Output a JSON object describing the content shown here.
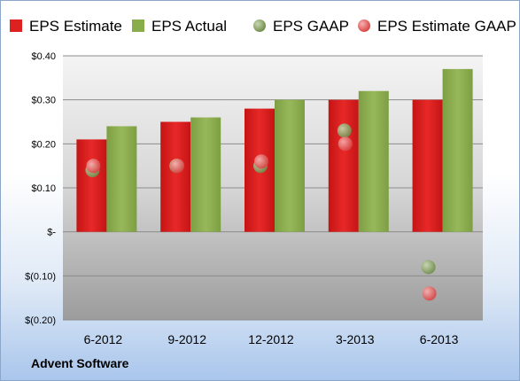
{
  "company": "Advent Software",
  "chart_data": {
    "type": "bar",
    "categories": [
      "6-2012",
      "9-2012",
      "12-2012",
      "3-2013",
      "6-2013"
    ],
    "series": [
      {
        "name": "EPS Estimate",
        "kind": "bar",
        "color": "#dd2020",
        "values": [
          0.21,
          0.25,
          0.28,
          0.3,
          0.3
        ]
      },
      {
        "name": "EPS Actual",
        "kind": "bar",
        "color": "#8aad4c",
        "values": [
          0.24,
          0.26,
          0.3,
          0.32,
          0.37
        ]
      },
      {
        "name": "EPS GAAP",
        "kind": "point",
        "color": "#7f9a58",
        "values": [
          0.14,
          0.15,
          0.15,
          0.23,
          -0.08
        ]
      },
      {
        "name": "EPS Estimate GAAP",
        "kind": "point",
        "color": "#e06060",
        "values": [
          0.15,
          0.15,
          0.16,
          0.2,
          -0.14
        ]
      }
    ],
    "ylim": [
      -0.2,
      0.4
    ],
    "yticks": [
      0.4,
      0.3,
      0.2,
      0.1,
      0,
      -0.1,
      -0.2
    ],
    "ytick_labels": [
      "$0.40",
      "$0.30",
      "$0.20",
      "$0.10",
      "$-",
      "$(0.10)",
      "$(0.20)"
    ],
    "legend_position": "top",
    "grid": true
  }
}
